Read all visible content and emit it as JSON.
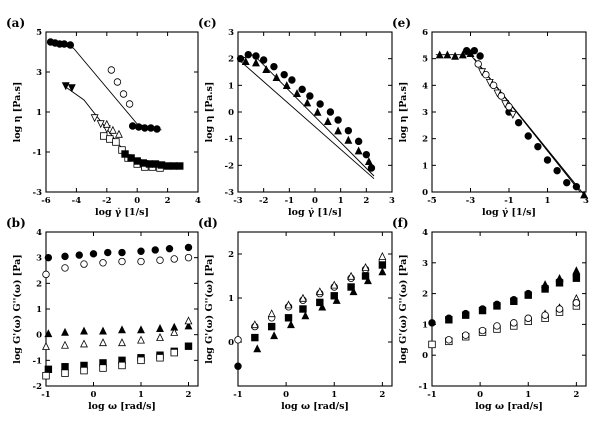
{
  "chart_data": [
    {
      "panel_id": "a",
      "panel_label": "(a)",
      "type": "scatter",
      "xlabel": "log γ̇ [1/s]",
      "ylabel": "log η [Pa.s]",
      "xlim": [
        -6,
        4
      ],
      "ylim": [
        -3,
        5
      ],
      "xticks": [
        -6,
        -4,
        -2,
        0,
        2,
        4
      ],
      "yticks": [
        -3,
        -1,
        1,
        3,
        5
      ],
      "series": [
        {
          "marker": "circle-filled",
          "x": [
            -5.7,
            -5.4,
            -5.1,
            -4.8,
            -4.4,
            -0.3,
            0.1,
            0.5,
            0.9,
            1.3
          ],
          "y": [
            4.5,
            4.45,
            4.4,
            4.4,
            4.35,
            0.3,
            0.25,
            0.2,
            0.2,
            0.15
          ]
        },
        {
          "marker": "circle-open",
          "x": [
            -1.7,
            -1.3,
            -0.9,
            -0.5
          ],
          "y": [
            3.1,
            2.5,
            1.9,
            1.4
          ]
        },
        {
          "marker": "triangle-down-filled",
          "x": [
            -4.7,
            -4.3
          ],
          "y": [
            2.3,
            2.2
          ]
        },
        {
          "marker": "triangle-down-open",
          "x": [
            -2.8,
            -2.4,
            -2.0
          ],
          "y": [
            0.7,
            0.4,
            0.15
          ]
        },
        {
          "marker": "triangle-up-open",
          "x": [
            -2.0,
            -1.6,
            -1.2
          ],
          "y": [
            0.4,
            0.1,
            -0.1
          ]
        },
        {
          "marker": "square-open",
          "x": [
            -2.2,
            -1.8,
            -1.4,
            -1.0,
            -0.6,
            0.0,
            0.5,
            1.0,
            1.5
          ],
          "y": [
            -0.2,
            -0.35,
            -0.5,
            -0.9,
            -1.3,
            -1.6,
            -1.75,
            -1.75,
            -1.8
          ]
        },
        {
          "marker": "square-filled",
          "x": [
            -0.8,
            -0.4,
            0.0,
            0.4,
            0.8,
            1.2,
            1.6,
            2.0,
            2.4,
            2.8
          ],
          "y": [
            -1.1,
            -1.3,
            -1.45,
            -1.55,
            -1.6,
            -1.6,
            -1.65,
            -1.7,
            -1.7,
            -1.7
          ]
        }
      ],
      "lines": [
        {
          "x": [
            -5.7,
            -4.2,
            0.0,
            1.6
          ],
          "y": [
            4.45,
            4.2,
            0.4,
            0.1
          ]
        },
        {
          "x": [
            -4.8,
            -3.5,
            -0.5,
            3.0
          ],
          "y": [
            2.3,
            1.6,
            -1.3,
            -1.7
          ]
        }
      ]
    },
    {
      "panel_id": "c",
      "panel_label": "(c)",
      "type": "scatter",
      "xlabel": "log γ̇ [1/s]",
      "ylabel": "log η [Pa.s]",
      "xlim": [
        -3,
        3
      ],
      "ylim": [
        -3,
        3
      ],
      "xticks": [
        -3,
        -2,
        -1,
        0,
        1,
        2,
        3
      ],
      "yticks": [
        -3,
        -2,
        -1,
        0,
        1,
        2,
        3
      ],
      "series": [
        {
          "marker": "circle-filled",
          "x": [
            -2.9,
            -2.6,
            -2.3,
            -2.0,
            -1.6,
            -1.2,
            -0.9,
            -0.5,
            -0.2,
            0.2,
            0.6,
            0.9,
            1.3,
            1.7,
            2.0,
            2.2
          ],
          "y": [
            2.0,
            2.15,
            2.1,
            1.95,
            1.7,
            1.4,
            1.2,
            0.85,
            0.6,
            0.3,
            0.0,
            -0.3,
            -0.7,
            -1.1,
            -1.6,
            -2.1
          ]
        },
        {
          "marker": "triangle-up-filled",
          "x": [
            -2.7,
            -2.3,
            -1.9,
            -1.5,
            -1.1,
            -0.7,
            -0.3,
            0.1,
            0.5,
            0.9,
            1.3,
            1.7,
            2.1
          ],
          "y": [
            1.9,
            1.85,
            1.6,
            1.3,
            1.0,
            0.7,
            0.35,
            0.0,
            -0.35,
            -0.7,
            -1.05,
            -1.45,
            -1.85
          ]
        }
      ],
      "lines": [
        {
          "x": [
            -2.9,
            -2.4,
            2.3
          ],
          "y": [
            2.0,
            2.15,
            -2.4
          ]
        },
        {
          "x": [
            -2.9,
            2.3
          ],
          "y": [
            1.9,
            -2.5
          ]
        }
      ]
    },
    {
      "panel_id": "e",
      "panel_label": "(e)",
      "type": "scatter",
      "xlabel": "log γ̇ [1/s]",
      "ylabel": "log η [Pa.s]",
      "xlim": [
        -5,
        3
      ],
      "ylim": [
        0,
        6
      ],
      "xticks": [
        -5,
        -3,
        -1,
        1,
        3
      ],
      "xtick_labels": [
        "-5",
        "-3",
        "-1",
        "1",
        "3"
      ],
      "yticks": [
        0,
        1,
        2,
        3,
        4,
        5,
        6
      ],
      "series": [
        {
          "marker": "triangle-up-filled",
          "x": [
            -4.6,
            -4.2,
            -3.8,
            -3.4,
            -3.0
          ],
          "y": [
            5.15,
            5.15,
            5.1,
            5.15,
            5.2
          ]
        },
        {
          "marker": "circle-filled",
          "x": [
            -3.2,
            -2.8,
            -2.5,
            -1.0,
            -0.5,
            0.0,
            0.5,
            1.0,
            1.5,
            2.0,
            2.5
          ],
          "y": [
            5.3,
            5.3,
            5.1,
            3.0,
            2.6,
            2.1,
            1.7,
            1.2,
            0.8,
            0.35,
            0.2
          ]
        },
        {
          "marker": "circle-open",
          "x": [
            -2.6,
            -2.2,
            -1.8,
            -1.4,
            -1.0
          ],
          "y": [
            4.8,
            4.4,
            4.0,
            3.6,
            3.2
          ]
        },
        {
          "marker": "triangle-down-open",
          "x": [
            -2.4,
            -2.0,
            -1.6,
            -1.2,
            -0.8
          ],
          "y": [
            4.5,
            4.1,
            3.7,
            3.3,
            2.9
          ]
        },
        {
          "marker": "triangle-up-filled",
          "x": [
            2.9
          ],
          "y": [
            -0.1
          ]
        }
      ],
      "lines": [
        {
          "x": [
            -4.8,
            -3.0,
            2.9
          ],
          "y": [
            5.15,
            5.15,
            -0.1
          ]
        },
        {
          "x": [
            -2.8,
            2.6
          ],
          "y": [
            5.0,
            0.1
          ]
        },
        {
          "x": [
            -2.6,
            2.7
          ],
          "y": [
            4.8,
            0.0
          ]
        }
      ]
    },
    {
      "panel_id": "b",
      "panel_label": "(b)",
      "type": "scatter",
      "xlabel": "log ω [rad/s]",
      "ylabel": "log G'(ω) G''(ω) [Pa]",
      "xlim": [
        -1,
        2.2
      ],
      "ylim": [
        -2,
        4
      ],
      "xticks": [
        -1,
        0,
        1,
        2
      ],
      "yticks": [
        -2,
        -1,
        0,
        1,
        2,
        3,
        4
      ],
      "series": [
        {
          "marker": "circle-filled",
          "x": [
            -0.95,
            -0.6,
            -0.3,
            0.0,
            0.3,
            0.6,
            1.0,
            1.3,
            1.6,
            2.0
          ],
          "y": [
            3.0,
            3.05,
            3.1,
            3.15,
            3.2,
            3.2,
            3.25,
            3.3,
            3.35,
            3.4
          ]
        },
        {
          "marker": "circle-open",
          "x": [
            -1.0,
            -0.6,
            -0.2,
            0.2,
            0.6,
            1.0,
            1.4,
            1.7,
            2.0
          ],
          "y": [
            2.35,
            2.6,
            2.75,
            2.8,
            2.85,
            2.85,
            2.9,
            2.95,
            3.0
          ]
        },
        {
          "marker": "triangle-up-filled",
          "x": [
            -0.95,
            -0.6,
            -0.2,
            0.2,
            0.6,
            1.0,
            1.4,
            1.7,
            2.0
          ],
          "y": [
            0.05,
            0.1,
            0.15,
            0.15,
            0.2,
            0.2,
            0.25,
            0.3,
            0.35
          ]
        },
        {
          "marker": "triangle-up-open",
          "x": [
            -1.0,
            -0.6,
            -0.2,
            0.2,
            0.6,
            1.0,
            1.4,
            1.7,
            2.0
          ],
          "y": [
            -0.45,
            -0.4,
            -0.35,
            -0.3,
            -0.3,
            -0.2,
            -0.1,
            0.1,
            0.55
          ]
        },
        {
          "marker": "square-filled",
          "x": [
            -0.95,
            -0.6,
            -0.2,
            0.2,
            0.6,
            1.0,
            1.4,
            1.7,
            2.0
          ],
          "y": [
            -1.35,
            -1.25,
            -1.2,
            -1.1,
            -1.0,
            -0.9,
            -0.8,
            -0.65,
            -0.45
          ]
        },
        {
          "marker": "square-open",
          "x": [
            -1.0,
            -0.6,
            -0.2,
            0.2,
            0.6,
            1.0,
            1.4,
            1.7
          ],
          "y": [
            -1.6,
            -1.5,
            -1.4,
            -1.3,
            -1.2,
            -1.0,
            -0.9,
            -0.7
          ]
        }
      ]
    },
    {
      "panel_id": "d",
      "panel_label": "(d)",
      "type": "scatter",
      "xlabel": "log ω [rad/s]",
      "ylabel": "log G'(ω) G''(ω) [Pa]",
      "xlim": [
        -1,
        2.2
      ],
      "ylim": [
        -1,
        2.5
      ],
      "xticks": [
        -1,
        0,
        1,
        2
      ],
      "yticks": [
        0,
        1,
        2
      ],
      "series": [
        {
          "marker": "circle-open",
          "x": [
            -1.0,
            -0.65,
            -0.3,
            0.05,
            0.35,
            0.7,
            1.0,
            1.35,
            1.65,
            2.0
          ],
          "y": [
            0.05,
            0.35,
            0.55,
            0.8,
            0.95,
            1.1,
            1.25,
            1.45,
            1.65,
            1.85
          ]
        },
        {
          "marker": "triangle-up-open",
          "x": [
            -0.65,
            -0.3,
            0.05,
            0.35,
            0.7,
            1.0,
            1.35,
            1.65,
            2.0
          ],
          "y": [
            0.4,
            0.65,
            0.85,
            1.0,
            1.15,
            1.3,
            1.5,
            1.7,
            1.95
          ]
        },
        {
          "marker": "square-filled",
          "x": [
            -0.65,
            -0.3,
            0.05,
            0.35,
            0.7,
            1.0,
            1.35,
            1.65,
            2.0
          ],
          "y": [
            0.1,
            0.35,
            0.55,
            0.75,
            0.9,
            1.05,
            1.25,
            1.5,
            1.75
          ]
        },
        {
          "marker": "triangle-up-filled",
          "x": [
            -0.6,
            -0.25,
            0.1,
            0.4,
            0.75,
            1.05,
            1.4,
            1.7,
            2.0
          ],
          "y": [
            -0.15,
            0.15,
            0.4,
            0.6,
            0.8,
            0.95,
            1.15,
            1.4,
            1.6
          ]
        },
        {
          "marker": "circle-filled",
          "x": [
            -1.0
          ],
          "y": [
            -0.55
          ]
        }
      ]
    },
    {
      "panel_id": "f",
      "panel_label": "(f)",
      "type": "scatter",
      "xlabel": "log ω [rad/s]",
      "ylabel": "log G'(ω) G''(ω) [Pa]",
      "xlim": [
        -1,
        2.2
      ],
      "ylim": [
        -1,
        4
      ],
      "xticks": [
        -1,
        0,
        1,
        2
      ],
      "yticks": [
        -1,
        0,
        1,
        2,
        3,
        4
      ],
      "series": [
        {
          "marker": "circle-filled",
          "x": [
            -1.0,
            -0.65,
            -0.3,
            0.05,
            0.35,
            0.7,
            1.0,
            1.35,
            1.65,
            2.0
          ],
          "y": [
            1.05,
            1.2,
            1.35,
            1.5,
            1.65,
            1.8,
            2.0,
            2.2,
            2.4,
            2.6
          ]
        },
        {
          "marker": "square-filled",
          "x": [
            -0.65,
            -0.3,
            0.05,
            0.35,
            0.7,
            1.0,
            1.35,
            1.65,
            2.0
          ],
          "y": [
            1.15,
            1.3,
            1.45,
            1.6,
            1.75,
            1.95,
            2.15,
            2.35,
            2.5
          ]
        },
        {
          "marker": "triangle-up-filled",
          "x": [
            1.35,
            1.65,
            2.0
          ],
          "y": [
            2.3,
            2.5,
            2.75
          ]
        },
        {
          "marker": "triangle-up-open",
          "x": [
            1.35,
            1.65,
            2.0
          ],
          "y": [
            1.35,
            1.55,
            1.85
          ]
        },
        {
          "marker": "square-open",
          "x": [
            -1.0,
            -0.65,
            -0.3,
            0.05,
            0.35,
            0.7,
            1.0,
            1.35,
            1.65,
            2.0
          ],
          "y": [
            0.35,
            0.45,
            0.6,
            0.75,
            0.85,
            0.95,
            1.1,
            1.2,
            1.4,
            1.6
          ]
        },
        {
          "marker": "circle-open",
          "x": [
            -0.65,
            -0.3,
            0.05,
            0.35,
            0.7,
            1.0,
            1.35,
            1.65,
            2.0
          ],
          "y": [
            0.5,
            0.65,
            0.8,
            0.95,
            1.05,
            1.2,
            1.3,
            1.5,
            1.7
          ]
        }
      ]
    }
  ]
}
